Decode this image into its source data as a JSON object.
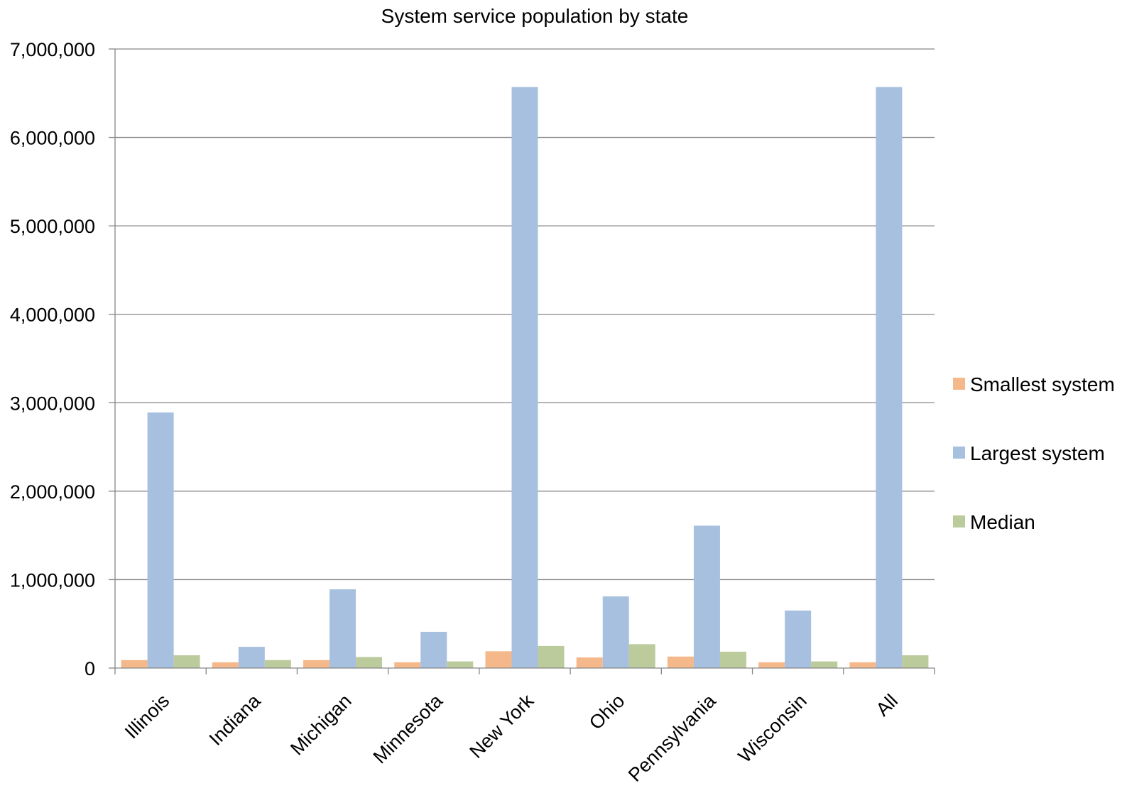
{
  "chart_data": {
    "type": "bar",
    "title": "System service population by state",
    "xlabel": "",
    "ylabel": "",
    "categories": [
      "Illinois",
      "Indiana",
      "Michigan",
      "Minnesota",
      "New York",
      "Ohio",
      "Pennsylvania",
      "Wisconsin",
      "All"
    ],
    "series": [
      {
        "name": "Smallest system",
        "color": "#f5b88a",
        "values": [
          90000,
          65000,
          90000,
          65000,
          190000,
          120000,
          130000,
          65000,
          65000
        ]
      },
      {
        "name": "Largest system",
        "color": "#a7c0e0",
        "values": [
          2890000,
          240000,
          890000,
          410000,
          6570000,
          810000,
          1610000,
          650000,
          6570000
        ]
      },
      {
        "name": "Median",
        "color": "#bccb9c",
        "values": [
          145000,
          90000,
          125000,
          75000,
          250000,
          270000,
          185000,
          75000,
          145000
        ]
      }
    ],
    "ylim": [
      0,
      7000000
    ],
    "yticks": [
      0,
      1000000,
      2000000,
      3000000,
      4000000,
      5000000,
      6000000,
      7000000
    ],
    "ytick_labels": [
      "0",
      "1,000,000",
      "2,000,000",
      "3,000,000",
      "4,000,000",
      "5,000,000",
      "6,000,000",
      "7,000,000"
    ],
    "grid": true,
    "legend_position": "right"
  }
}
